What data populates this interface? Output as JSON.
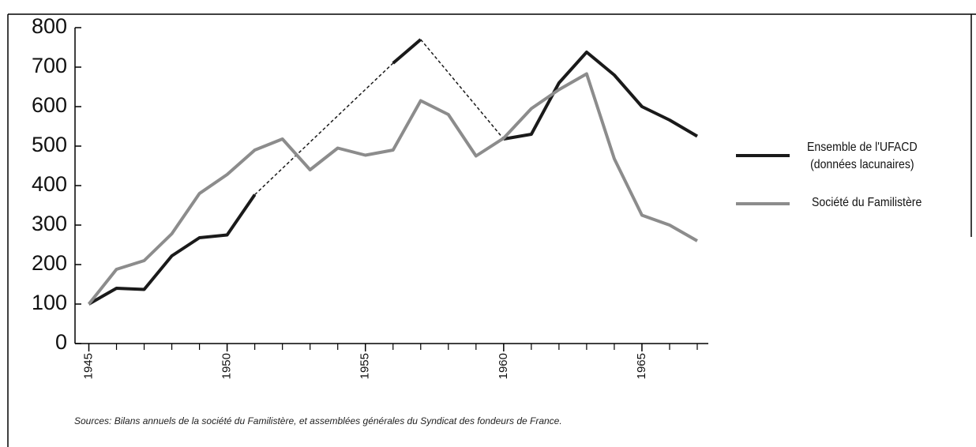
{
  "chart_data": {
    "type": "line",
    "x": [
      1945,
      1946,
      1947,
      1948,
      1949,
      1950,
      1951,
      1952,
      1953,
      1954,
      1955,
      1956,
      1957,
      1958,
      1959,
      1960,
      1961,
      1962,
      1963,
      1964,
      1965,
      1966,
      1967
    ],
    "series": [
      {
        "name": "Ensemble de l'UFACD\n(données lacunaires)",
        "color": "#1a1a1a",
        "gaps": "dashed",
        "values": [
          100,
          140,
          137,
          222,
          268,
          275,
          377,
          null,
          null,
          null,
          null,
          710,
          770,
          null,
          null,
          518,
          530,
          660,
          738,
          680,
          600,
          566,
          525
        ]
      },
      {
        "name": "Société du Familistère",
        "color": "#8c8c8c",
        "values": [
          100,
          188,
          210,
          278,
          380,
          428,
          490,
          518,
          440,
          495,
          477,
          490,
          615,
          580,
          475,
          520,
          595,
          643,
          683,
          468,
          325,
          300,
          260
        ]
      }
    ],
    "xlim": [
      1944.5,
      1967.4
    ],
    "ylim": [
      0,
      800
    ],
    "xticks": [
      1945,
      1950,
      1955,
      1960,
      1965
    ],
    "xminorticks": [
      1946,
      1947,
      1948,
      1949,
      1951,
      1952,
      1953,
      1954,
      1956,
      1957,
      1958,
      1959,
      1961,
      1962,
      1963,
      1964,
      1966,
      1967
    ],
    "yticks": [
      0,
      100,
      200,
      300,
      400,
      500,
      600,
      700,
      800
    ],
    "legend": "right",
    "source": "Sources: Bilans annuels de la société du Familistère, et assemblées générales du Syndicat des fondeurs de France."
  }
}
